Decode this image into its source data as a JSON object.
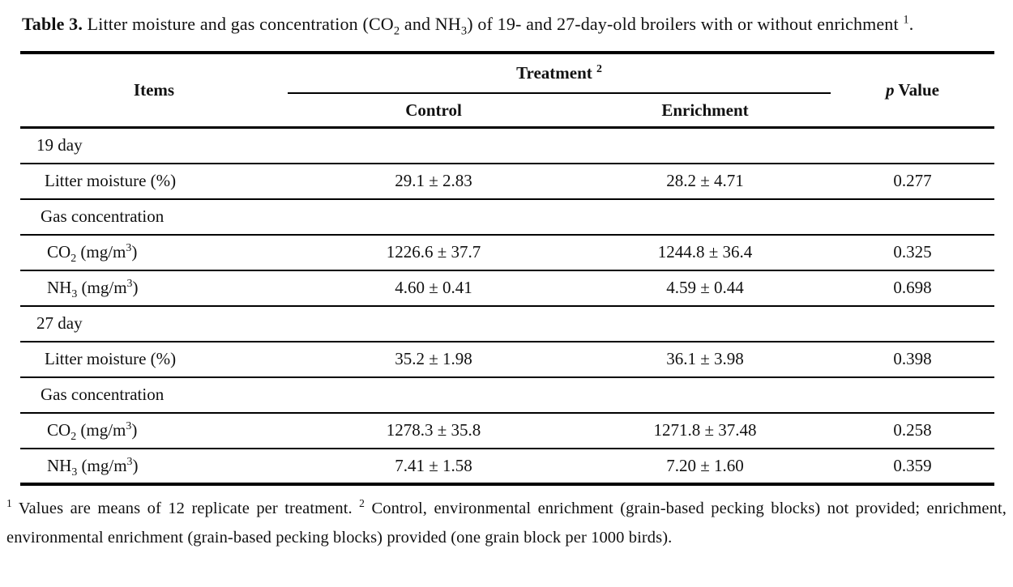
{
  "colors": {
    "ink": "#111111",
    "paper": "#ffffff",
    "rule": "#000000"
  },
  "caption": {
    "label": "Table 3.",
    "part1": " Litter moisture and gas concentration (CO",
    "sub1": "2",
    "part2": " and NH",
    "sub2": "3",
    "part3": ") of 19- and 27-day-old broilers with or without enrichment ",
    "marker": "1",
    "period": "."
  },
  "table": {
    "header": {
      "items": "Items",
      "treatment": "Treatment ",
      "treatment_sup": "2",
      "control": "Control",
      "enrichment": "Enrichment",
      "p_italic": "p",
      "p_rest": " Value"
    },
    "rows": [
      {
        "kind": "day",
        "label": "19 day"
      },
      {
        "kind": "data",
        "label": "Litter moisture (%)",
        "control": "29.1 ± 2.83",
        "enrichment": "28.2 ± 4.71",
        "p": "0.277"
      },
      {
        "kind": "sub",
        "label": "Gas concentration"
      },
      {
        "kind": "chem",
        "label": {
          "a": "CO",
          "sub": "2",
          "b": " (mg/m",
          "sup": "3",
          "c": ")"
        },
        "control": "1226.6 ± 37.7",
        "enrichment": "1244.8 ± 36.4",
        "p": "0.325"
      },
      {
        "kind": "chem",
        "label": {
          "a": "NH",
          "sub": "3",
          "b": " (mg/m",
          "sup": "3",
          "c": ")"
        },
        "control": "4.60 ± 0.41",
        "enrichment": "4.59 ± 0.44",
        "p": "0.698"
      },
      {
        "kind": "day",
        "label": "27 day"
      },
      {
        "kind": "data",
        "label": "Litter moisture (%)",
        "control": "35.2 ± 1.98",
        "enrichment": "36.1 ± 3.98",
        "p": "0.398"
      },
      {
        "kind": "sub",
        "label": "Gas concentration"
      },
      {
        "kind": "chem",
        "label": {
          "a": "CO",
          "sub": "2",
          "b": " (mg/m",
          "sup": "3",
          "c": ")"
        },
        "control": "1278.3 ± 35.8",
        "enrichment": "1271.8 ± 37.48",
        "p": "0.258"
      },
      {
        "kind": "chem",
        "label": {
          "a": "NH",
          "sub": "3",
          "b": " (mg/m",
          "sup": "3",
          "c": ")"
        },
        "control": "7.41 ± 1.58",
        "enrichment": "7.20 ± 1.60",
        "p": "0.359"
      }
    ]
  },
  "footnote": {
    "marker1": "1",
    "text1": " Values are means of 12 replicate per treatment. ",
    "marker2": "2",
    "text2": " Control, environmental enrichment (grain-based pecking blocks) not provided; enrichment, environmental enrichment (grain-based pecking blocks) provided (one grain block per 1000 birds)."
  }
}
